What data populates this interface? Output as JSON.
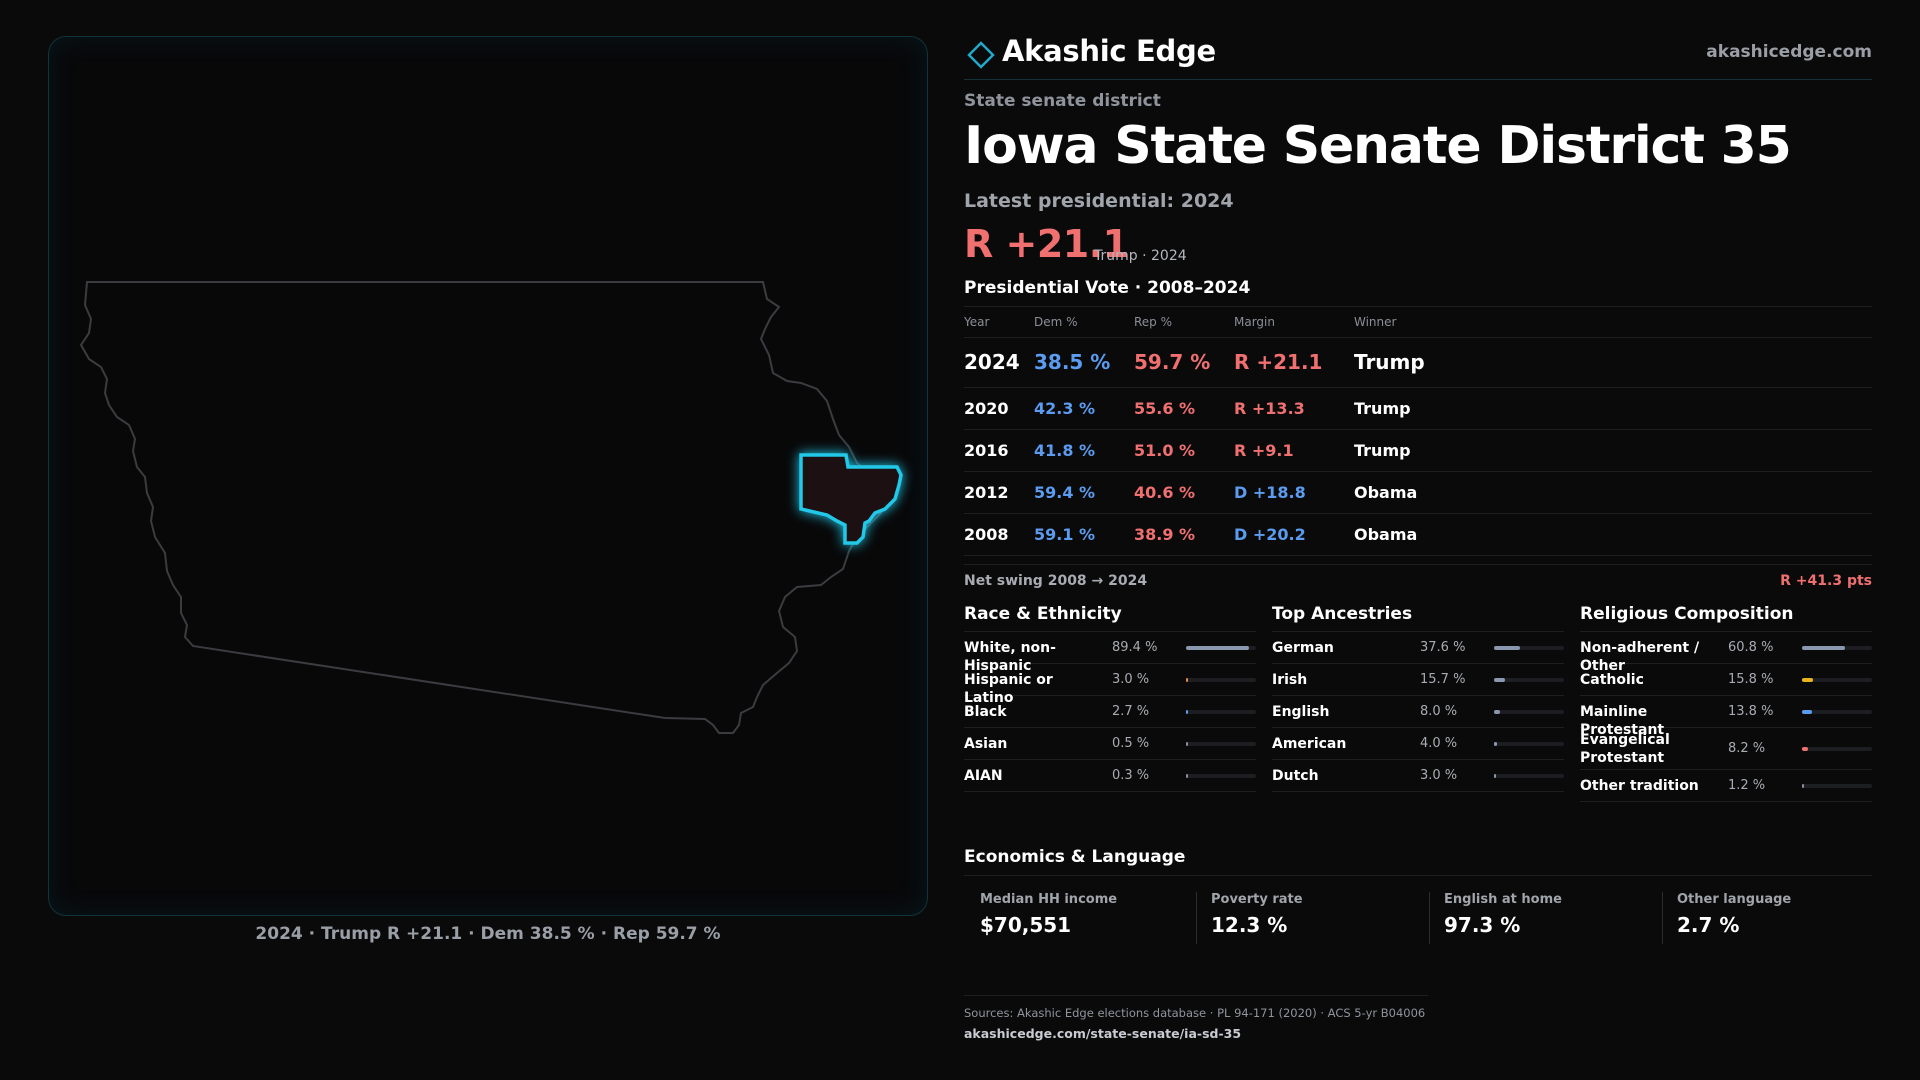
{
  "map": {
    "caption": "2024 · Trump R +21.1 · Dem 38.5 % · Rep 59.7 %",
    "state_outline_color": "#3a3c40",
    "district_highlight_color": "#22c8e8"
  },
  "brand": {
    "name": "Akashic Edge",
    "url": "akashicedge.com",
    "logo_icon": "diamond-outline"
  },
  "header": {
    "kicker": "State senate district",
    "title": "Iowa State Senate District 35",
    "latest": "Latest presidential: 2024",
    "margin": "R +21.1",
    "margin_sub": "Trump · 2024"
  },
  "presidential": {
    "heading": "Presidential Vote · 2008–2024",
    "columns": [
      "Year",
      "Dem %",
      "Rep %",
      "Margin",
      "Winner"
    ],
    "rows": [
      {
        "year": "2024",
        "dem": "38.5 %",
        "rep": "59.7 %",
        "margin": "R +21.1",
        "party": "R",
        "winner": "Trump"
      },
      {
        "year": "2020",
        "dem": "42.3 %",
        "rep": "55.6 %",
        "margin": "R +13.3",
        "party": "R",
        "winner": "Trump"
      },
      {
        "year": "2016",
        "dem": "41.8 %",
        "rep": "51.0 %",
        "margin": "R +9.1",
        "party": "R",
        "winner": "Trump"
      },
      {
        "year": "2012",
        "dem": "59.4 %",
        "rep": "40.6 %",
        "margin": "D +18.8",
        "party": "D",
        "winner": "Obama"
      },
      {
        "year": "2008",
        "dem": "59.1 %",
        "rep": "38.9 %",
        "margin": "D +20.2",
        "party": "D",
        "winner": "Obama"
      }
    ]
  },
  "swing": {
    "label": "Net swing 2008 → 2024",
    "value": "R +41.3 pts"
  },
  "race": {
    "heading": "Race & Ethnicity",
    "items": [
      {
        "label": "White, non-Hispanic",
        "value": "89.4 %",
        "fraction": 0.894,
        "color": "#8a98ad"
      },
      {
        "label": "Hispanic or Latino",
        "value": "3.0 %",
        "fraction": 0.03,
        "color": "#e08a3c"
      },
      {
        "label": "Black",
        "value": "2.7 %",
        "fraction": 0.027,
        "color": "#5b9cf0"
      },
      {
        "label": "Asian",
        "value": "0.5 %",
        "fraction": 0.005,
        "color": "#8a8e96"
      },
      {
        "label": "AIAN",
        "value": "0.3 %",
        "fraction": 0.003,
        "color": "#8a8e96"
      }
    ]
  },
  "ancestry": {
    "heading": "Top Ancestries",
    "items": [
      {
        "label": "German",
        "value": "37.6 %",
        "fraction": 0.376,
        "color": "#8a98ad"
      },
      {
        "label": "Irish",
        "value": "15.7 %",
        "fraction": 0.157,
        "color": "#8a98ad"
      },
      {
        "label": "English",
        "value": "8.0 %",
        "fraction": 0.08,
        "color": "#8a98ad"
      },
      {
        "label": "American",
        "value": "4.0 %",
        "fraction": 0.04,
        "color": "#8a98ad"
      },
      {
        "label": "Dutch",
        "value": "3.0 %",
        "fraction": 0.03,
        "color": "#8a98ad"
      }
    ]
  },
  "religion": {
    "heading": "Religious Composition",
    "items": [
      {
        "label": "Non-adherent / Other",
        "value": "60.8 %",
        "fraction": 0.608,
        "color": "#8a98ad"
      },
      {
        "label": "Catholic",
        "value": "15.8 %",
        "fraction": 0.158,
        "color": "#e8b420"
      },
      {
        "label": "Mainline Protestant",
        "value": "13.8 %",
        "fraction": 0.138,
        "color": "#5b9cf0"
      },
      {
        "label": "Evangelical Protestant",
        "value": "8.2 %",
        "fraction": 0.082,
        "color": "#f07070"
      },
      {
        "label": "Other tradition",
        "value": "1.2 %",
        "fraction": 0.012,
        "color": "#8a8e96"
      }
    ]
  },
  "economics": {
    "heading": "Economics & Language",
    "cards": [
      {
        "label": "Median HH income",
        "value": "$70,551"
      },
      {
        "label": "Poverty rate",
        "value": "12.3 %"
      },
      {
        "label": "English at home",
        "value": "97.3 %"
      },
      {
        "label": "Other language",
        "value": "2.7 %"
      }
    ]
  },
  "sources": {
    "text": "Sources: Akashic Edge elections database · PL 94-171 (2020) · ACS 5-yr B04006",
    "url": "akashicedge.com/state-senate/ia-sd-35"
  }
}
